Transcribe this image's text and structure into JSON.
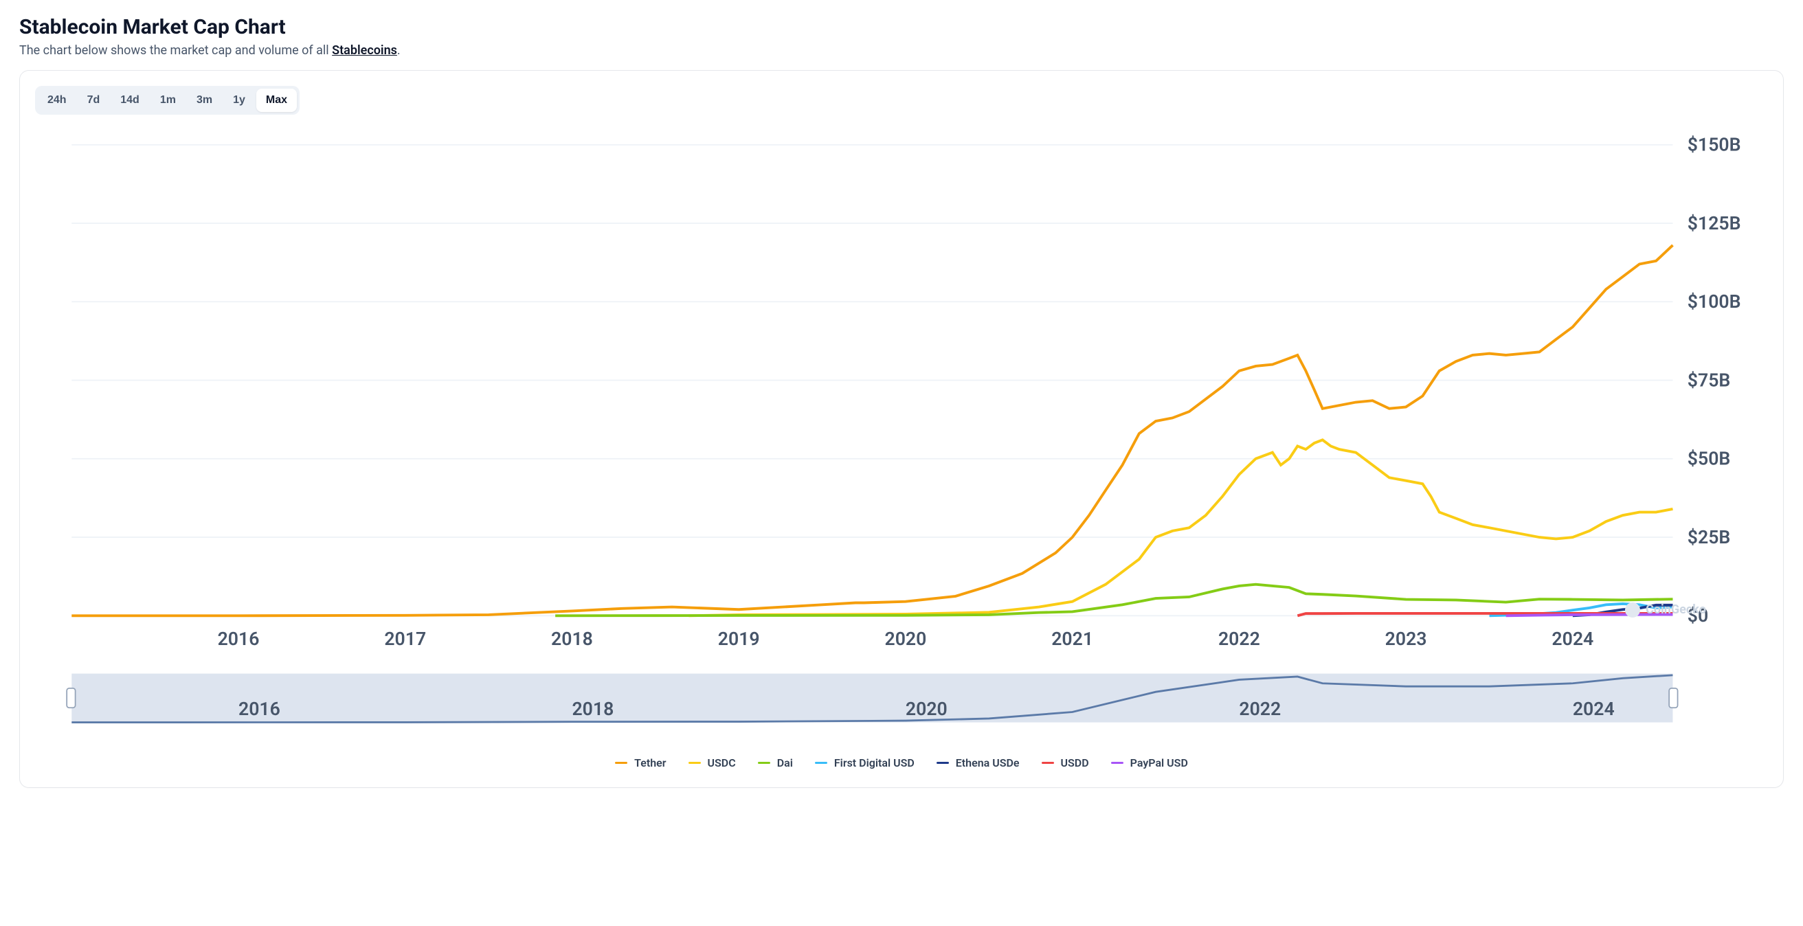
{
  "header": {
    "title": "Stablecoin Market Cap Chart",
    "subtitle_prefix": "The chart below shows the market cap and volume of all ",
    "subtitle_link": "Stablecoins",
    "subtitle_suffix": "."
  },
  "range_tabs": {
    "items": [
      "24h",
      "7d",
      "14d",
      "1m",
      "3m",
      "1y",
      "Max"
    ],
    "active_index": 6
  },
  "watermark": "CoinGecko",
  "chart": {
    "type": "line",
    "background_color": "#ffffff",
    "grid_color": "#eef2f7",
    "line_width": 2.2,
    "x": {
      "min": 2015,
      "max": 2024.6,
      "ticks": [
        2016,
        2017,
        2018,
        2019,
        2020,
        2021,
        2022,
        2023,
        2024
      ],
      "tick_labels": [
        "2016",
        "2017",
        "2018",
        "2019",
        "2020",
        "2021",
        "2022",
        "2023",
        "2024"
      ],
      "label_fontsize": 15
    },
    "y": {
      "min": 0,
      "max": 150,
      "ticks": [
        0,
        25,
        50,
        75,
        100,
        125,
        150
      ],
      "tick_labels": [
        "$0",
        "$25B",
        "$50B",
        "$75B",
        "$100B",
        "$125B",
        "$150B"
      ],
      "label_fontsize": 15
    },
    "series": [
      {
        "name": "Tether",
        "color": "#f59e0b",
        "points": [
          [
            2015.0,
            0.0
          ],
          [
            2016.0,
            0.0
          ],
          [
            2017.0,
            0.1
          ],
          [
            2017.5,
            0.3
          ],
          [
            2018.0,
            1.5
          ],
          [
            2018.3,
            2.3
          ],
          [
            2018.6,
            2.8
          ],
          [
            2019.0,
            2.0
          ],
          [
            2019.5,
            3.5
          ],
          [
            2019.7,
            4.1
          ],
          [
            2019.75,
            4.1
          ],
          [
            2019.8,
            4.2
          ],
          [
            2020.0,
            4.5
          ],
          [
            2020.3,
            6.2
          ],
          [
            2020.5,
            9.5
          ],
          [
            2020.7,
            13.5
          ],
          [
            2020.9,
            20.0
          ],
          [
            2021.0,
            25.0
          ],
          [
            2021.1,
            32.0
          ],
          [
            2021.2,
            40.0
          ],
          [
            2021.3,
            48.0
          ],
          [
            2021.4,
            58.0
          ],
          [
            2021.5,
            62.0
          ],
          [
            2021.6,
            63.0
          ],
          [
            2021.7,
            65.0
          ],
          [
            2021.8,
            69.0
          ],
          [
            2021.9,
            73.0
          ],
          [
            2022.0,
            78.0
          ],
          [
            2022.1,
            79.5
          ],
          [
            2022.2,
            80.0
          ],
          [
            2022.3,
            82.0
          ],
          [
            2022.35,
            83.0
          ],
          [
            2022.4,
            78.0
          ],
          [
            2022.45,
            72.0
          ],
          [
            2022.5,
            66.0
          ],
          [
            2022.6,
            67.0
          ],
          [
            2022.7,
            68.0
          ],
          [
            2022.8,
            68.5
          ],
          [
            2022.9,
            66.0
          ],
          [
            2023.0,
            66.5
          ],
          [
            2023.1,
            70.0
          ],
          [
            2023.2,
            78.0
          ],
          [
            2023.3,
            81.0
          ],
          [
            2023.4,
            83.0
          ],
          [
            2023.5,
            83.5
          ],
          [
            2023.6,
            83.0
          ],
          [
            2023.7,
            83.5
          ],
          [
            2023.8,
            84.0
          ],
          [
            2023.9,
            88.0
          ],
          [
            2024.0,
            92.0
          ],
          [
            2024.1,
            98.0
          ],
          [
            2024.2,
            104.0
          ],
          [
            2024.3,
            108.0
          ],
          [
            2024.4,
            112.0
          ],
          [
            2024.5,
            113.0
          ],
          [
            2024.6,
            118.0
          ]
        ]
      },
      {
        "name": "USDC",
        "color": "#facc15",
        "points": [
          [
            2018.7,
            0.0
          ],
          [
            2019.0,
            0.3
          ],
          [
            2019.5,
            0.4
          ],
          [
            2020.0,
            0.5
          ],
          [
            2020.5,
            1.1
          ],
          [
            2020.8,
            2.8
          ],
          [
            2021.0,
            4.5
          ],
          [
            2021.2,
            10.0
          ],
          [
            2021.4,
            18.0
          ],
          [
            2021.5,
            25.0
          ],
          [
            2021.6,
            27.0
          ],
          [
            2021.7,
            28.0
          ],
          [
            2021.8,
            32.0
          ],
          [
            2021.9,
            38.0
          ],
          [
            2022.0,
            45.0
          ],
          [
            2022.1,
            50.0
          ],
          [
            2022.2,
            52.0
          ],
          [
            2022.25,
            48.0
          ],
          [
            2022.3,
            50.0
          ],
          [
            2022.35,
            54.0
          ],
          [
            2022.4,
            53.0
          ],
          [
            2022.45,
            55.0
          ],
          [
            2022.5,
            56.0
          ],
          [
            2022.55,
            54.0
          ],
          [
            2022.6,
            53.0
          ],
          [
            2022.7,
            52.0
          ],
          [
            2022.8,
            48.0
          ],
          [
            2022.9,
            44.0
          ],
          [
            2023.0,
            43.0
          ],
          [
            2023.1,
            42.0
          ],
          [
            2023.15,
            38.0
          ],
          [
            2023.2,
            33.0
          ],
          [
            2023.3,
            31.0
          ],
          [
            2023.4,
            29.0
          ],
          [
            2023.5,
            28.0
          ],
          [
            2023.6,
            27.0
          ],
          [
            2023.7,
            26.0
          ],
          [
            2023.8,
            25.0
          ],
          [
            2023.9,
            24.5
          ],
          [
            2024.0,
            25.0
          ],
          [
            2024.1,
            27.0
          ],
          [
            2024.2,
            30.0
          ],
          [
            2024.3,
            32.0
          ],
          [
            2024.4,
            33.0
          ],
          [
            2024.5,
            33.0
          ],
          [
            2024.6,
            34.0
          ]
        ]
      },
      {
        "name": "Dai",
        "color": "#84cc16",
        "points": [
          [
            2017.9,
            0.0
          ],
          [
            2018.5,
            0.05
          ],
          [
            2019.0,
            0.08
          ],
          [
            2020.0,
            0.1
          ],
          [
            2020.5,
            0.3
          ],
          [
            2020.8,
            1.0
          ],
          [
            2021.0,
            1.3
          ],
          [
            2021.3,
            3.5
          ],
          [
            2021.5,
            5.5
          ],
          [
            2021.7,
            6.0
          ],
          [
            2021.9,
            8.5
          ],
          [
            2022.0,
            9.5
          ],
          [
            2022.1,
            10.0
          ],
          [
            2022.2,
            9.5
          ],
          [
            2022.3,
            9.0
          ],
          [
            2022.4,
            7.0
          ],
          [
            2022.5,
            6.8
          ],
          [
            2022.7,
            6.3
          ],
          [
            2023.0,
            5.2
          ],
          [
            2023.3,
            5.0
          ],
          [
            2023.6,
            4.3
          ],
          [
            2023.8,
            5.3
          ],
          [
            2024.0,
            5.2
          ],
          [
            2024.3,
            5.0
          ],
          [
            2024.6,
            5.3
          ]
        ]
      },
      {
        "name": "First Digital USD",
        "color": "#38bdf8",
        "points": [
          [
            2023.5,
            0.0
          ],
          [
            2023.7,
            0.3
          ],
          [
            2023.9,
            1.0
          ],
          [
            2024.0,
            1.8
          ],
          [
            2024.1,
            2.5
          ],
          [
            2024.2,
            3.5
          ],
          [
            2024.3,
            3.8
          ],
          [
            2024.4,
            3.5
          ],
          [
            2024.5,
            2.5
          ],
          [
            2024.6,
            2.8
          ]
        ]
      },
      {
        "name": "Ethena USDe",
        "color": "#1e3a8a",
        "points": [
          [
            2024.0,
            0.0
          ],
          [
            2024.1,
            0.3
          ],
          [
            2024.2,
            1.2
          ],
          [
            2024.3,
            2.0
          ],
          [
            2024.4,
            2.4
          ],
          [
            2024.5,
            3.4
          ],
          [
            2024.6,
            3.4
          ]
        ]
      },
      {
        "name": "USDD",
        "color": "#ef4444",
        "points": [
          [
            2022.35,
            0.0
          ],
          [
            2022.4,
            0.7
          ],
          [
            2022.5,
            0.7
          ],
          [
            2022.7,
            0.74
          ],
          [
            2023.0,
            0.72
          ],
          [
            2023.5,
            0.73
          ],
          [
            2024.0,
            0.72
          ],
          [
            2024.6,
            0.73
          ]
        ]
      },
      {
        "name": "PayPal USD",
        "color": "#a855f7",
        "points": [
          [
            2023.6,
            0.0
          ],
          [
            2023.8,
            0.15
          ],
          [
            2024.0,
            0.3
          ],
          [
            2024.3,
            0.35
          ],
          [
            2024.6,
            0.4
          ]
        ]
      }
    ]
  },
  "navigator": {
    "background_color": "#c7d2e4",
    "line_color": "#5b7aa8",
    "x_ticks": [
      2016,
      2018,
      2020,
      2022,
      2024
    ],
    "x_tick_labels": [
      "2016",
      "2018",
      "2020",
      "2022",
      "2024"
    ],
    "points": [
      [
        2015.0,
        0.0
      ],
      [
        2017.0,
        0.5
      ],
      [
        2018.0,
        2.0
      ],
      [
        2019.0,
        2.5
      ],
      [
        2020.0,
        5.5
      ],
      [
        2020.5,
        13.0
      ],
      [
        2021.0,
        34.0
      ],
      [
        2021.5,
        100.0
      ],
      [
        2022.0,
        140.0
      ],
      [
        2022.35,
        150.0
      ],
      [
        2022.5,
        128.0
      ],
      [
        2023.0,
        118.0
      ],
      [
        2023.5,
        118.0
      ],
      [
        2024.0,
        128.0
      ],
      [
        2024.3,
        145.0
      ],
      [
        2024.6,
        155.0
      ]
    ],
    "y_max": 160
  }
}
